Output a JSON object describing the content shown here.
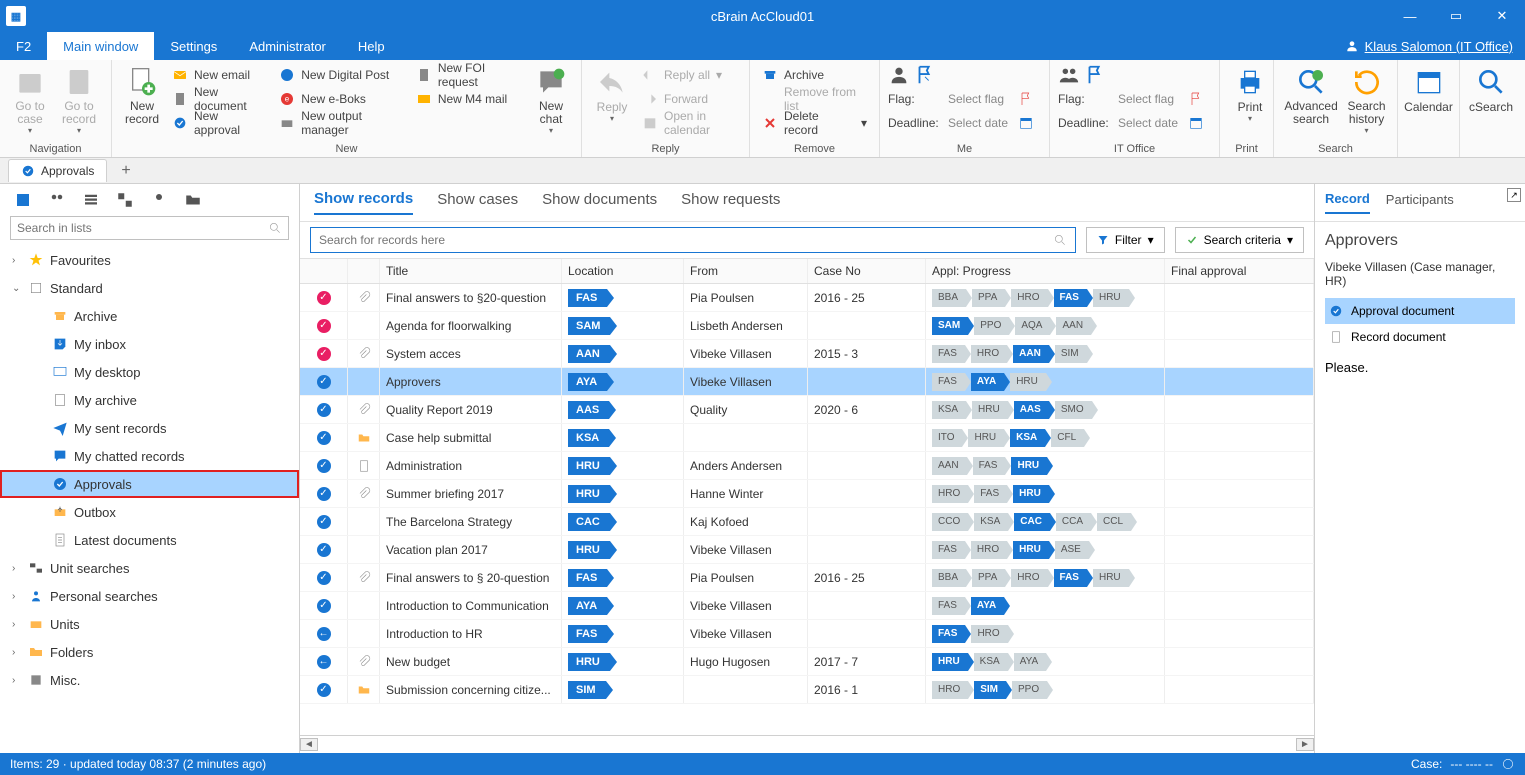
{
  "colors": {
    "brand": "#1976d2",
    "selected": "#a8d4ff",
    "highlight_border": "#e02020"
  },
  "titlebar": {
    "app_title": "cBrain AcCloud01"
  },
  "menubar": {
    "items": [
      {
        "label": "F2"
      },
      {
        "label": "Main window",
        "active": true
      },
      {
        "label": "Settings"
      },
      {
        "label": "Administrator"
      },
      {
        "label": "Help"
      }
    ],
    "user": "Klaus Salomon (IT Office)"
  },
  "ribbon": {
    "navigation": {
      "label": "Navigation",
      "go_to_case": "Go to\ncase",
      "go_to_record": "Go to\nrecord"
    },
    "new": {
      "label": "New",
      "new_record": "New\nrecord",
      "new_email": "New email",
      "new_document": "New document",
      "new_approval": "New approval",
      "new_digital_post": "New Digital Post",
      "new_e_boks": "New e-Boks",
      "new_output_manager": "New output manager",
      "new_foi": "New FOI request",
      "new_m4": "New M4 mail",
      "new_chat": "New\nchat"
    },
    "reply": {
      "label": "Reply",
      "reply": "Reply",
      "reply_all": "Reply all",
      "forward": "Forward",
      "open_in_cal": "Open in calendar"
    },
    "remove": {
      "label": "Remove",
      "archive": "Archive",
      "remove_from_list": "Remove from list",
      "delete_record": "Delete record"
    },
    "me": {
      "label": "Me",
      "flag": "Flag:",
      "deadline": "Deadline:",
      "select_flag": "Select flag",
      "select_date": "Select date"
    },
    "office": {
      "label": "IT Office"
    },
    "print": {
      "label": "Print",
      "print_btn": "Print"
    },
    "search": {
      "label": "Search",
      "advanced": "Advanced\nsearch",
      "history": "Search\nhistory"
    },
    "calendar": "Calendar",
    "csearch": "cSearch"
  },
  "tabstrip": {
    "tab_label": "Approvals"
  },
  "sidebar": {
    "search_placeholder": "Search in lists",
    "tree": [
      {
        "level": 0,
        "arrow": "›",
        "icon": "star",
        "label": "Favourites"
      },
      {
        "level": 0,
        "arrow": "⌄",
        "icon": "box",
        "label": "Standard"
      },
      {
        "level": 2,
        "icon": "archive",
        "label": "Archive"
      },
      {
        "level": 2,
        "icon": "inbox",
        "label": "My inbox"
      },
      {
        "level": 2,
        "icon": "desktop",
        "label": "My desktop"
      },
      {
        "level": 2,
        "icon": "archive2",
        "label": "My archive"
      },
      {
        "level": 2,
        "icon": "sent",
        "label": "My sent records"
      },
      {
        "level": 2,
        "icon": "chat",
        "label": "My chatted records"
      },
      {
        "level": 2,
        "icon": "approval",
        "label": "Approvals",
        "selected": true
      },
      {
        "level": 2,
        "icon": "outbox",
        "label": "Outbox"
      },
      {
        "level": 2,
        "icon": "doc",
        "label": "Latest documents"
      },
      {
        "level": 0,
        "arrow": "›",
        "icon": "unit",
        "label": "Unit searches"
      },
      {
        "level": 0,
        "arrow": "›",
        "icon": "personal",
        "label": "Personal searches"
      },
      {
        "level": 0,
        "arrow": "›",
        "icon": "units",
        "label": "Units"
      },
      {
        "level": 0,
        "arrow": "›",
        "icon": "folder",
        "label": "Folders"
      },
      {
        "level": 0,
        "arrow": "›",
        "icon": "misc",
        "label": "Misc."
      }
    ]
  },
  "center": {
    "view_tabs": [
      "Show records",
      "Show cases",
      "Show documents",
      "Show requests"
    ],
    "active_view": 0,
    "search_placeholder": "Search for records here",
    "filter": "Filter",
    "criteria": "Search criteria",
    "columns": [
      "",
      "",
      "Title",
      "Location",
      "From",
      "Case No",
      "Appl: Progress",
      "Final approval"
    ],
    "rows": [
      {
        "status": "pink",
        "att": true,
        "title": "Final answers to §20-question",
        "loc": "FAS",
        "from": "Pia Poulsen",
        "case": "2016 - 25",
        "prog": [
          [
            "BBA",
            "lite"
          ],
          [
            "PPA",
            "lite"
          ],
          [
            "HRO",
            "lite"
          ],
          [
            "FAS",
            "blue"
          ],
          [
            "HRU",
            "lite"
          ]
        ]
      },
      {
        "status": "pink",
        "att": false,
        "title": "Agenda for floorwalking",
        "loc": "SAM",
        "from": "Lisbeth Andersen",
        "case": "",
        "prog": [
          [
            "SAM",
            "blue"
          ],
          [
            "PPO",
            "lite"
          ],
          [
            "AQA",
            "lite"
          ],
          [
            "AAN",
            "lite"
          ]
        ]
      },
      {
        "status": "pink",
        "att": true,
        "title": "System acces",
        "loc": "AAN",
        "from": "Vibeke Villasen",
        "case": "2015 - 3",
        "prog": [
          [
            "FAS",
            "lite"
          ],
          [
            "HRO",
            "lite"
          ],
          [
            "AAN",
            "blue"
          ],
          [
            "SIM",
            "lite"
          ]
        ]
      },
      {
        "status": "blue",
        "att": false,
        "title": "Approvers",
        "loc": "AYA",
        "from": "Vibeke Villasen",
        "case": "",
        "prog": [
          [
            "FAS",
            "lite"
          ],
          [
            "AYA",
            "blue"
          ],
          [
            "HRU",
            "lite"
          ]
        ],
        "selected": true
      },
      {
        "status": "blue",
        "att": true,
        "title": "Quality Report 2019",
        "loc": "AAS",
        "from": "Quality",
        "case": "2020 - 6",
        "prog": [
          [
            "KSA",
            "lite"
          ],
          [
            "HRU",
            "lite"
          ],
          [
            "AAS",
            "blue"
          ],
          [
            "SMO",
            "lite"
          ]
        ]
      },
      {
        "status": "blue",
        "att": false,
        "attfolder": true,
        "title": "Case help submittal",
        "loc": "KSA",
        "from": "",
        "case": "",
        "prog": [
          [
            "ITO",
            "lite"
          ],
          [
            "HRU",
            "lite"
          ],
          [
            "KSA",
            "blue"
          ],
          [
            "CFL",
            "lite"
          ]
        ]
      },
      {
        "status": "blue",
        "att": false,
        "attdoc": true,
        "title": "Administration",
        "loc": "HRU",
        "from": "Anders Andersen",
        "case": "",
        "prog": [
          [
            "AAN",
            "lite"
          ],
          [
            "FAS",
            "lite"
          ],
          [
            "HRU",
            "blue"
          ]
        ]
      },
      {
        "status": "blue",
        "att": true,
        "title": "Summer briefing 2017",
        "loc": "HRU",
        "from": "Hanne Winter",
        "case": "",
        "prog": [
          [
            "HRO",
            "lite"
          ],
          [
            "FAS",
            "lite"
          ],
          [
            "HRU",
            "blue"
          ]
        ]
      },
      {
        "status": "blue",
        "att": false,
        "title": "The Barcelona Strategy",
        "loc": "CAC",
        "from": "Kaj Kofoed",
        "case": "",
        "prog": [
          [
            "CCO",
            "lite"
          ],
          [
            "KSA",
            "lite"
          ],
          [
            "CAC",
            "blue"
          ],
          [
            "CCA",
            "lite"
          ],
          [
            "CCL",
            "lite"
          ]
        ]
      },
      {
        "status": "blue",
        "att": false,
        "title": "Vacation plan 2017",
        "loc": "HRU",
        "from": "Vibeke Villasen",
        "case": "",
        "prog": [
          [
            "FAS",
            "lite"
          ],
          [
            "HRO",
            "lite"
          ],
          [
            "HRU",
            "blue"
          ],
          [
            "ASE",
            "lite"
          ]
        ]
      },
      {
        "status": "blue",
        "att": true,
        "title": "Final answers to § 20-question",
        "loc": "FAS",
        "from": "Pia Poulsen",
        "case": "2016 - 25",
        "prog": [
          [
            "BBA",
            "lite"
          ],
          [
            "PPA",
            "lite"
          ],
          [
            "HRO",
            "lite"
          ],
          [
            "FAS",
            "blue"
          ],
          [
            "HRU",
            "lite"
          ]
        ]
      },
      {
        "status": "blue",
        "att": false,
        "title": "Introduction to Communication",
        "loc": "AYA",
        "from": "Vibeke Villasen",
        "case": "",
        "prog": [
          [
            "FAS",
            "lite"
          ],
          [
            "AYA",
            "blue"
          ]
        ]
      },
      {
        "status": "bluearr",
        "att": false,
        "title": "Introduction to HR",
        "loc": "FAS",
        "from": "Vibeke Villasen",
        "case": "",
        "prog": [
          [
            "FAS",
            "blue"
          ],
          [
            "HRO",
            "lite"
          ]
        ]
      },
      {
        "status": "bluearr",
        "att": true,
        "title": "New budget",
        "loc": "HRU",
        "from": "Hugo Hugosen",
        "case": "2017 - 7",
        "prog": [
          [
            "HRU",
            "blue"
          ],
          [
            "KSA",
            "lite"
          ],
          [
            "AYA",
            "lite"
          ]
        ]
      },
      {
        "status": "blue",
        "att": false,
        "attfolder": true,
        "title": "Submission concerning citize...",
        "loc": "SIM",
        "from": "",
        "case": "2016 - 1",
        "prog": [
          [
            "HRO",
            "lite"
          ],
          [
            "SIM",
            "blue"
          ],
          [
            "PPO",
            "lite"
          ]
        ]
      }
    ]
  },
  "right": {
    "tabs": [
      "Record",
      "Participants"
    ],
    "active": 0,
    "heading": "Approvers",
    "sub": "Vibeke Villasen (Case manager, HR)",
    "docs": [
      {
        "label": "Approval document",
        "active": true,
        "icon": "approval"
      },
      {
        "label": "Record document",
        "active": false,
        "icon": "doc"
      }
    ],
    "text": "Please."
  },
  "statusbar": {
    "left": "Items: 29 · updated today 08:37 (2 minutes ago)",
    "case_label": "Case:",
    "case_val": "--- ---- --"
  }
}
